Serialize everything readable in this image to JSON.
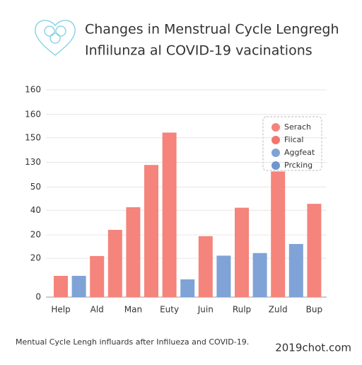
{
  "chart_data": {
    "type": "bar",
    "title": "Changes in Menstrual Cycle Lengregh",
    "subtitle": "Inflilunza al COVID-19 vacinations",
    "caption": "Mentual Cycle Lengh influards after Infilueza and COVID-19.",
    "watermark": "2019chot.com",
    "categories": [
      "Help",
      null,
      "Ald",
      null,
      "Man",
      null,
      "Euty",
      null,
      "Juin",
      null,
      "Rulp",
      null,
      "Zuld",
      null,
      "Bup"
    ],
    "values": [
      16.4,
      16.4,
      31.7,
      51.9,
      69.4,
      102,
      127,
      13.7,
      47,
      32,
      69,
      34,
      97,
      41,
      72
    ],
    "colors": [
      "#f4847c",
      "#7fa3d6",
      "#f4847c",
      "#f4847c",
      "#f4847c",
      "#f4847c",
      "#f4847c",
      "#7fa3d6",
      "#f4847c",
      "#7fa3d6",
      "#f4847c",
      "#7fa3d6",
      "#f4847c",
      "#7fa3d6",
      "#f4847c"
    ],
    "legend": [
      {
        "name": "Serach",
        "color": "#f4847c"
      },
      {
        "name": "Fiical",
        "color": "#f0766e"
      },
      {
        "name": "Aggfeat",
        "color": "#7fa3d6"
      },
      {
        "name": "Prcking",
        "color": "#7096cf"
      }
    ],
    "ylim": [
      0,
      160
    ],
    "yticks": [
      0,
      {
        "value": 30,
        "label": "20"
      },
      {
        "value": 48,
        "label": "20"
      },
      {
        "value": 67,
        "label": "40"
      },
      {
        "value": 85,
        "label": "50"
      },
      {
        "value": 104,
        "label": "130"
      },
      {
        "value": 123,
        "label": "150"
      },
      {
        "value": 141,
        "label": "160"
      },
      160
    ],
    "grid": true
  }
}
